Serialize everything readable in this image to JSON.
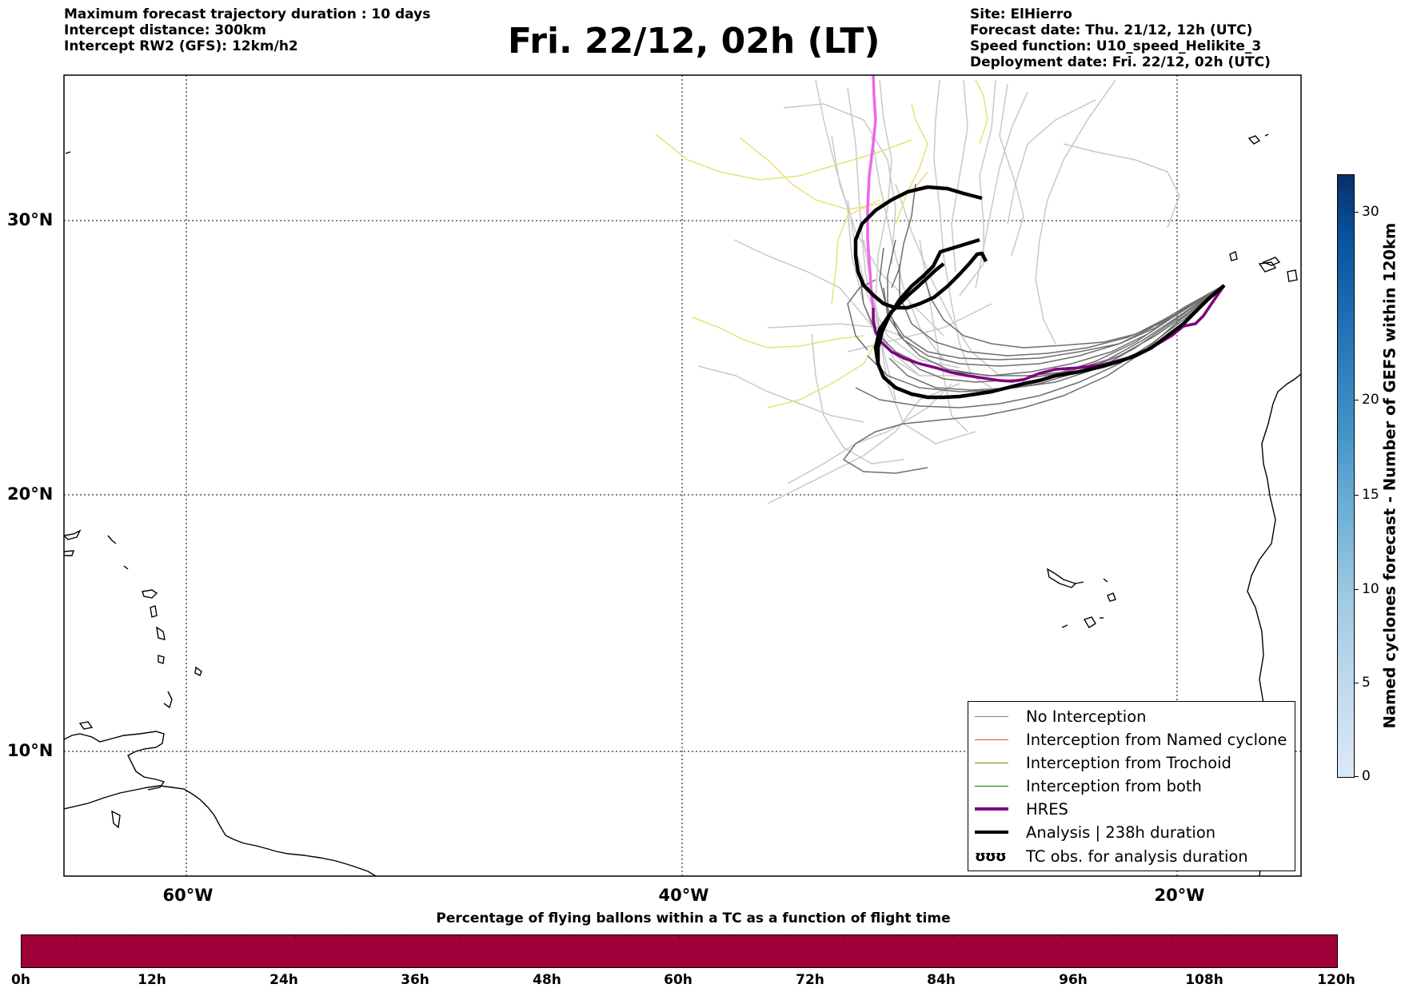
{
  "info_left": {
    "line1": "Maximum forecast trajectory duration : 10 days",
    "line2": "Intercept distance: 300km",
    "line3": "Intercept RW2 (GFS):  12km/h2"
  },
  "title": "Fri. 22/12, 02h (LT)",
  "info_right": {
    "line1": "Site: ElHierro",
    "line2": "Forecast date: Thu. 21/12, 12h (UTC)",
    "line3": "Speed function: U10_speed_Helikite_3",
    "line4": "Deployment date: Fri. 22/12, 02h (UTC)"
  },
  "map": {
    "lat_labels": [
      "30°N",
      "20°N",
      "10°N"
    ],
    "lon_labels": [
      "60°W",
      "40°W",
      "20°W"
    ]
  },
  "legend": {
    "items": [
      {
        "label": "No Interception",
        "color": "#808080"
      },
      {
        "label": "Interception from Named cyclone",
        "color": "#ff4500"
      },
      {
        "label": "Interception from Trochoid",
        "color": "#808000"
      },
      {
        "label": "Interception from both",
        "color": "#008000"
      },
      {
        "label": "HRES",
        "color": "#800080"
      },
      {
        "label": "Analysis | 238h duration",
        "color": "#000000"
      },
      {
        "label": "TC obs. for analysis duration",
        "symbol": "ʊʊʊ"
      }
    ]
  },
  "vertical_colorbar": {
    "title": "Named cyclones forecast - Number of GEFS within 120km",
    "ticks": [
      "0",
      "5",
      "10",
      "15",
      "20",
      "30"
    ]
  },
  "horizontal_colorbar": {
    "title": "Percentage of flying ballons within a TC as a function of flight time",
    "ticks": [
      "0h",
      "12h",
      "24h",
      "36h",
      "48h",
      "60h",
      "72h",
      "84h",
      "96h",
      "108h",
      "120h"
    ],
    "color": "#a0003a"
  }
}
